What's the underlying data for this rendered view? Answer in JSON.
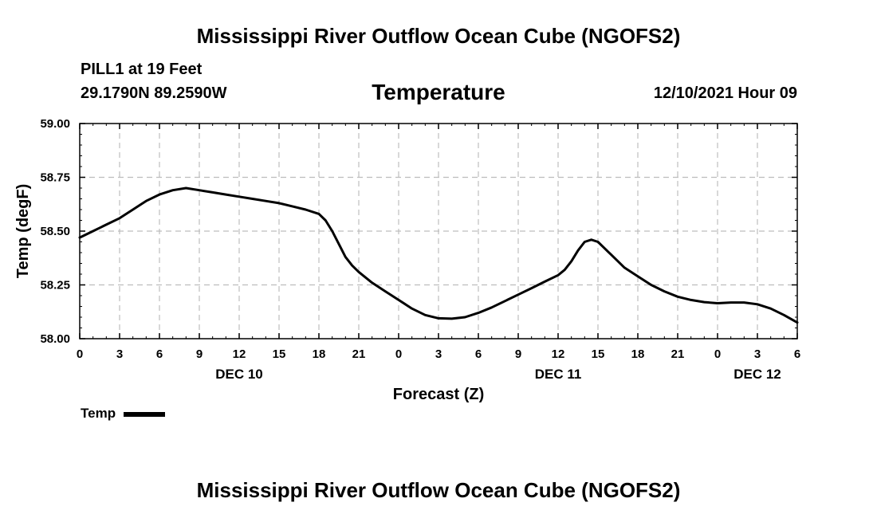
{
  "chart_data": {
    "type": "line",
    "title": "Mississippi River Outflow Ocean Cube (NGOFS2)",
    "footer_title": "Mississippi River Outflow Ocean Cube (NGOFS2)",
    "station": "PILL1 at 19 Feet",
    "location": "29.1790N  89.2590W",
    "subtitle": "Temperature",
    "datetime": "12/10/2021 Hour 09",
    "xlabel": "Forecast (Z)",
    "ylabel": "Temp (degF)",
    "xlim": [
      0,
      54
    ],
    "ylim": [
      58.0,
      59.0
    ],
    "yticks": [
      58.0,
      58.25,
      58.5,
      58.75,
      59.0
    ],
    "ytick_labels": [
      "58.00",
      "58.25",
      "58.50",
      "58.75",
      "59.00"
    ],
    "xticks": [
      0,
      3,
      6,
      9,
      12,
      15,
      18,
      21,
      24,
      27,
      30,
      33,
      36,
      39,
      42,
      45,
      48,
      51,
      54
    ],
    "xtick_labels": [
      "0",
      "3",
      "6",
      "9",
      "12",
      "15",
      "18",
      "21",
      "0",
      "3",
      "6",
      "9",
      "12",
      "15",
      "18",
      "21",
      "0",
      "3",
      "6"
    ],
    "day_labels": [
      {
        "x": 12,
        "label": "DEC 10"
      },
      {
        "x": 36,
        "label": "DEC 11"
      },
      {
        "x": 51,
        "label": "DEC 12"
      }
    ],
    "grid": true,
    "legend_position": "bottom-left",
    "series": [
      {
        "name": "Temp",
        "color": "#000000",
        "x": [
          0,
          1,
          2,
          3,
          4,
          5,
          6,
          7,
          8,
          9,
          10,
          11,
          12,
          13,
          14,
          15,
          16,
          17,
          18,
          18.5,
          19,
          19.5,
          20,
          20.5,
          21,
          22,
          23,
          24,
          25,
          26,
          27,
          28,
          29,
          30,
          31,
          32,
          33,
          34,
          35,
          36,
          36.5,
          37,
          37.5,
          38,
          38.5,
          39,
          39.5,
          40,
          40.5,
          41,
          42,
          43,
          44,
          45,
          46,
          47,
          48,
          49,
          50,
          51,
          52,
          53,
          54
        ],
        "values": [
          58.47,
          58.5,
          58.53,
          58.56,
          58.6,
          58.64,
          58.67,
          58.69,
          58.7,
          58.69,
          58.68,
          58.67,
          58.66,
          58.65,
          58.64,
          58.63,
          58.615,
          58.6,
          58.58,
          58.55,
          58.5,
          58.44,
          58.38,
          58.34,
          58.31,
          58.26,
          58.22,
          58.18,
          58.14,
          58.11,
          58.095,
          58.093,
          58.1,
          58.12,
          58.145,
          58.175,
          58.205,
          58.235,
          58.265,
          58.295,
          58.32,
          58.36,
          58.41,
          58.45,
          58.46,
          58.45,
          58.42,
          58.39,
          58.36,
          58.33,
          58.29,
          58.25,
          58.22,
          58.195,
          58.18,
          58.17,
          58.165,
          58.168,
          58.168,
          58.16,
          58.14,
          58.11,
          58.075
        ]
      }
    ]
  }
}
